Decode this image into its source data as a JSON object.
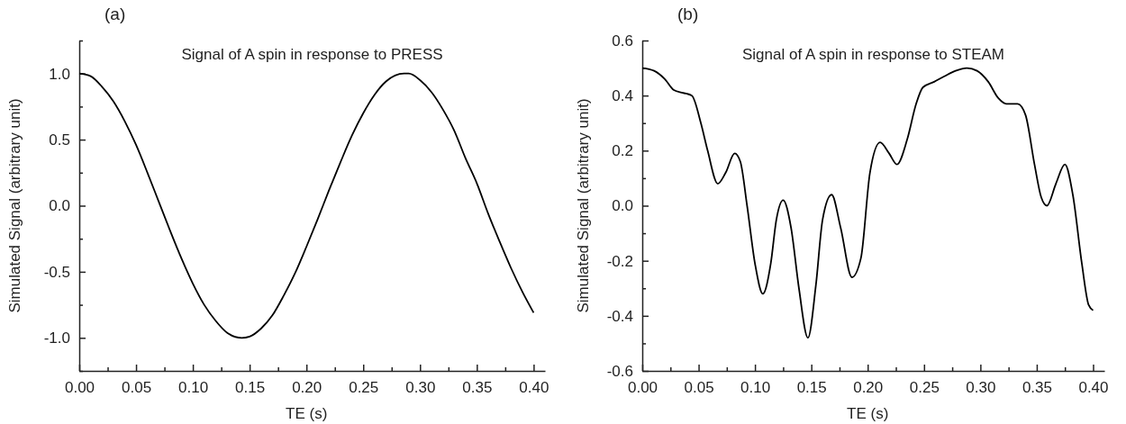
{
  "chart_data": [
    {
      "type": "line",
      "title": "Signal of A spin in response to PRESS",
      "xlabel": "TE (s)",
      "ylabel": "Simulated Signal (arbitrary unit)",
      "annotations": [
        "(a)"
      ],
      "line_style": "solid",
      "marker": "none",
      "grid": false,
      "xlim": [
        0,
        0.41
      ],
      "ylim": [
        -1.25,
        1.25
      ],
      "xticks": [
        {
          "value": 0,
          "label": "0.00"
        },
        {
          "value": 0.025,
          "label": null
        },
        {
          "value": 0.05,
          "label": "0.05"
        },
        {
          "value": 0.075,
          "label": null
        },
        {
          "value": 0.1,
          "label": "0.10"
        },
        {
          "value": 0.125,
          "label": null
        },
        {
          "value": 0.15,
          "label": "0.15"
        },
        {
          "value": 0.175,
          "label": null
        },
        {
          "value": 0.2,
          "label": "0.20"
        },
        {
          "value": 0.225,
          "label": null
        },
        {
          "value": 0.25,
          "label": "0.25"
        },
        {
          "value": 0.275,
          "label": null
        },
        {
          "value": 0.3,
          "label": "0.30"
        },
        {
          "value": 0.325,
          "label": null
        },
        {
          "value": 0.35,
          "label": "0.35"
        },
        {
          "value": 0.375,
          "label": null
        },
        {
          "value": 0.4,
          "label": "0.40"
        }
      ],
      "yticks": [
        {
          "value": -1.25,
          "label": null
        },
        {
          "value": -1,
          "label": "-1.0"
        },
        {
          "value": -0.75,
          "label": null
        },
        {
          "value": -0.5,
          "label": "-0.5"
        },
        {
          "value": -0.25,
          "label": null
        },
        {
          "value": 0,
          "label": "0.0"
        },
        {
          "value": 0.25,
          "label": null
        },
        {
          "value": 0.5,
          "label": "0.5"
        },
        {
          "value": 0.75,
          "label": null
        },
        {
          "value": 1,
          "label": "1.0"
        },
        {
          "value": 1.25,
          "label": null
        }
      ],
      "series": [
        {
          "color": "#000000",
          "x": [
            0,
            0.01,
            0.02,
            0.03,
            0.04,
            0.05,
            0.06,
            0.07,
            0.08,
            0.09,
            0.1,
            0.11,
            0.12,
            0.13,
            0.143,
            0.15,
            0.16,
            0.17,
            0.18,
            0.19,
            0.2,
            0.21,
            0.22,
            0.23,
            0.24,
            0.25,
            0.26,
            0.27,
            0.286,
            0.29,
            0.3,
            0.31,
            0.32,
            0.33,
            0.34,
            0.35,
            0.36,
            0.37,
            0.38,
            0.39,
            0.4
          ],
          "values": [
            1,
            0.98,
            0.9,
            0.79,
            0.64,
            0.46,
            0.25,
            0.03,
            -0.19,
            -0.4,
            -0.59,
            -0.75,
            -0.87,
            -0.96,
            -1,
            -0.99,
            -0.93,
            -0.83,
            -0.68,
            -0.51,
            -0.31,
            -0.1,
            0.12,
            0.33,
            0.53,
            0.7,
            0.84,
            0.94,
            1,
            1,
            0.95,
            0.86,
            0.73,
            0.57,
            0.36,
            0.17,
            -0.06,
            -0.27,
            -0.47,
            -0.65,
            -0.81
          ]
        }
      ]
    },
    {
      "type": "line",
      "title": "Signal of A spin in response to STEAM",
      "xlabel": "TE (s)",
      "ylabel": "Simulated Signal (arbitrary unit)",
      "annotations": [
        "(b)"
      ],
      "line_style": "solid",
      "marker": "none",
      "grid": false,
      "xlim": [
        0,
        0.41
      ],
      "ylim": [
        -0.6,
        0.6
      ],
      "xticks": [
        {
          "value": 0,
          "label": "0.00"
        },
        {
          "value": 0.025,
          "label": null
        },
        {
          "value": 0.05,
          "label": "0.05"
        },
        {
          "value": 0.075,
          "label": null
        },
        {
          "value": 0.1,
          "label": "0.10"
        },
        {
          "value": 0.125,
          "label": null
        },
        {
          "value": 0.15,
          "label": "0.15"
        },
        {
          "value": 0.175,
          "label": null
        },
        {
          "value": 0.2,
          "label": "0.20"
        },
        {
          "value": 0.225,
          "label": null
        },
        {
          "value": 0.25,
          "label": "0.25"
        },
        {
          "value": 0.275,
          "label": null
        },
        {
          "value": 0.3,
          "label": "0.30"
        },
        {
          "value": 0.325,
          "label": null
        },
        {
          "value": 0.35,
          "label": "0.35"
        },
        {
          "value": 0.375,
          "label": null
        },
        {
          "value": 0.4,
          "label": "0.40"
        }
      ],
      "yticks": [
        {
          "value": -0.6,
          "label": "-0.6"
        },
        {
          "value": -0.5,
          "label": null
        },
        {
          "value": -0.4,
          "label": "-0.4"
        },
        {
          "value": -0.3,
          "label": null
        },
        {
          "value": -0.2,
          "label": "-0.2"
        },
        {
          "value": -0.1,
          "label": null
        },
        {
          "value": 0,
          "label": "0.0"
        },
        {
          "value": 0.1,
          "label": null
        },
        {
          "value": 0.2,
          "label": "0.2"
        },
        {
          "value": 0.3,
          "label": null
        },
        {
          "value": 0.4,
          "label": "0.4"
        },
        {
          "value": 0.5,
          "label": null
        },
        {
          "value": 0.6,
          "label": "0.6"
        }
      ],
      "series": [
        {
          "color": "#000000",
          "x": [
            0,
            0.0105,
            0.02,
            0.028,
            0.036,
            0.044,
            0.052,
            0.058,
            0.067,
            0.074,
            0.082,
            0.087,
            0.093,
            0.1,
            0.107,
            0.114,
            0.119,
            0.125,
            0.132,
            0.139,
            0.147,
            0.154,
            0.16,
            0.168,
            0.176,
            0.186,
            0.194,
            0.202,
            0.211,
            0.219,
            0.226,
            0.235,
            0.243,
            0.249,
            0.259,
            0.268,
            0.278,
            0.288,
            0.297,
            0.307,
            0.316,
            0.323,
            0.333,
            0.34,
            0.348,
            0.354,
            0.359,
            0.367,
            0.375,
            0.382,
            0.39,
            0.396,
            0.4
          ],
          "values": [
            0.5,
            0.49,
            0.46,
            0.42,
            0.41,
            0.4,
            0.3,
            0.2,
            0.08,
            0.12,
            0.19,
            0.16,
            0,
            -0.21,
            -0.32,
            -0.21,
            -0.05,
            0.02,
            -0.08,
            -0.3,
            -0.48,
            -0.29,
            -0.05,
            0.04,
            -0.08,
            -0.26,
            -0.19,
            0.12,
            0.23,
            0.19,
            0.15,
            0.24,
            0.37,
            0.43,
            0.45,
            0.47,
            0.49,
            0.5,
            0.49,
            0.45,
            0.39,
            0.37,
            0.37,
            0.33,
            0.15,
            0.03,
            0,
            0.08,
            0.15,
            0.04,
            -0.21,
            -0.36,
            -0.38
          ]
        }
      ]
    }
  ]
}
